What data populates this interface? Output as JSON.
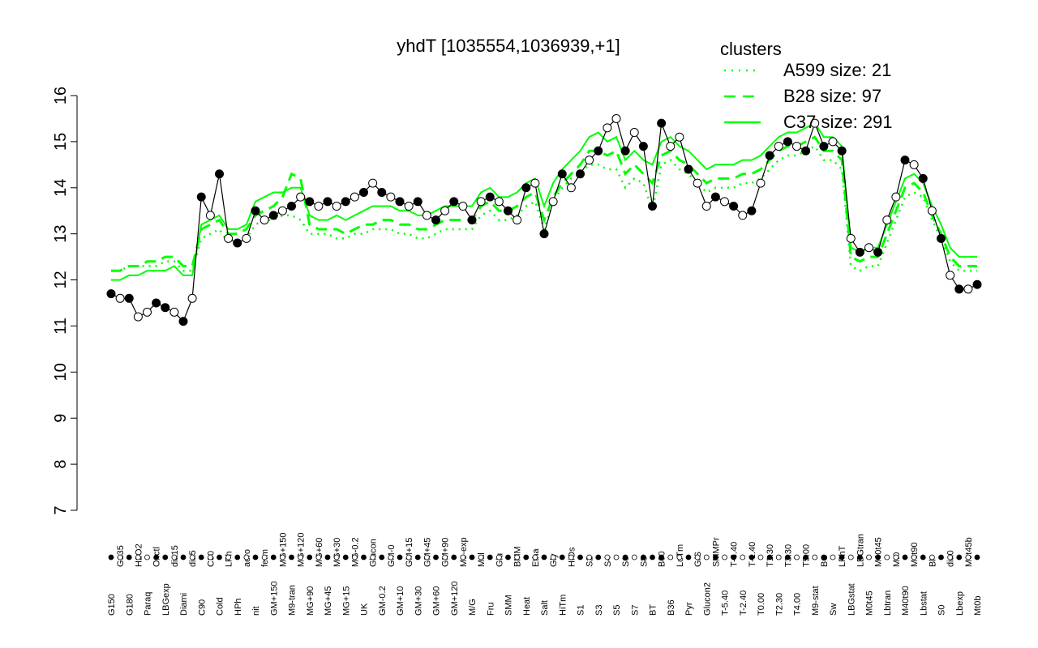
{
  "chart_data": {
    "type": "line",
    "title": "yhdT [1035554,1036939,+1]",
    "xlabel": "",
    "ylabel": "",
    "ylim": [
      7,
      16
    ],
    "yticks": [
      7,
      8,
      9,
      10,
      11,
      12,
      13,
      14,
      15,
      16
    ],
    "grid": false,
    "legend": {
      "title": "clusters",
      "placement": "top-right",
      "color": "#00ff00",
      "entries": [
        {
          "label": "A599 size: 21",
          "style": "dotted"
        },
        {
          "label": "B28 size: 97",
          "style": "dashed"
        },
        {
          "label": "C37 size: 291",
          "style": "solid"
        }
      ]
    },
    "line_color": "#00ff00",
    "x_labels": [
      "G150",
      "G135",
      "G180",
      "H2O2",
      "Paraq",
      "Oxctl",
      "LBGexp",
      "dia15",
      "Diami",
      "dia5",
      "C90",
      "C30",
      "Cold",
      "LPh",
      "HPh",
      "aero",
      "nit",
      "ferm",
      "GM+150",
      "MG+150",
      "M9-tran",
      "MG+120",
      "MG+90",
      "MG+60",
      "MG+45",
      "MG+30",
      "MG+15",
      "MG-0.2",
      "UK",
      "Glucon",
      "GM-0.2",
      "GM-0",
      "GM+10",
      "GM+15",
      "GM+30",
      "GM+45",
      "GM+60",
      "GM+90",
      "GM+120",
      "M9-exp",
      "M/G",
      "Mal",
      "Fru",
      "Glu",
      "SMM",
      "BMM",
      "Heat",
      "Etha",
      "Salt",
      "Gly",
      "HiTm",
      "HiOs",
      "S1",
      "S2",
      "S3",
      "S4",
      "S5",
      "S6",
      "S7",
      "S8",
      "BT",
      "B60",
      "B36",
      "LoTm",
      "Pyr",
      "G/S",
      "Glucon2",
      "SMMPr",
      "T-5.40",
      "T-3.40",
      "T-2.40",
      "T-1.40",
      "T0.00",
      "T1.30",
      "T2.30",
      "T3.30",
      "T4.00",
      "T5.00",
      "M9-stat",
      "BC",
      "Sw",
      "LPhT",
      "LBGstat",
      "LBGtran",
      "M0t45",
      "M40t45",
      "Lbtran",
      "Mt0",
      "M40t90",
      "M0t90",
      "Lbstat",
      "Bl",
      "S0",
      "dia0",
      "Lbexp",
      "M0t45b",
      "Mt0b"
    ],
    "series": [
      {
        "values": [
          11.7,
          11.6,
          11.6,
          11.2,
          11.3,
          11.5,
          11.4,
          11.3,
          11.1,
          11.6,
          13.8,
          13.4,
          14.3,
          12.9,
          12.8,
          12.9,
          13.5,
          13.3,
          13.4,
          13.5,
          13.6,
          13.8,
          13.7,
          13.6,
          13.7,
          13.6,
          13.7,
          13.8,
          13.9,
          14.1,
          13.9,
          13.8,
          13.7,
          13.6,
          13.7,
          13.4,
          13.3,
          13.5,
          13.7,
          13.6,
          13.3,
          13.7,
          13.8,
          13.7,
          13.5,
          13.3,
          14.0,
          14.1,
          13.0,
          13.7,
          14.3,
          14.0,
          14.3,
          14.6,
          14.8,
          15.3,
          15.5,
          14.8,
          15.2,
          14.9,
          13.6,
          15.4,
          14.9,
          15.1,
          14.4,
          14.1,
          13.6,
          13.8,
          13.7,
          13.6,
          13.4,
          13.5,
          14.1,
          14.7,
          14.9,
          15.0,
          14.9,
          14.8,
          15.4,
          14.9,
          15.0,
          14.8,
          12.9,
          12.6,
          12.7,
          12.6,
          13.3,
          13.8,
          14.6,
          14.5,
          14.2,
          13.5,
          12.9,
          12.1,
          11.8,
          11.8,
          11.9
        ]
      }
    ],
    "envelopes": {
      "B28_dashed": [
        12.2,
        12.2,
        12.3,
        12.3,
        12.4,
        12.4,
        12.5,
        12.5,
        12.3,
        12.3,
        13.1,
        13.2,
        13.3,
        13.0,
        13.0,
        13.1,
        13.4,
        13.5,
        13.6,
        13.8,
        14.3,
        14.2,
        13.2,
        13.1,
        13.1,
        13.1,
        13.0,
        13.1,
        13.2,
        13.2,
        13.3,
        13.3,
        13.2,
        13.2,
        13.1,
        13.1,
        13.2,
        13.3,
        13.3,
        13.3,
        13.3,
        13.6,
        13.7,
        13.5,
        13.5,
        13.6,
        13.8,
        13.9,
        13.3,
        13.8,
        14.1,
        14.3,
        14.5,
        14.8,
        14.8,
        14.7,
        14.8,
        14.3,
        14.5,
        14.3,
        14.1,
        14.7,
        14.8,
        14.6,
        14.5,
        14.3,
        14.1,
        14.2,
        14.2,
        14.2,
        14.3,
        14.3,
        14.4,
        14.6,
        14.8,
        14.9,
        14.9,
        15.0,
        15.1,
        14.8,
        14.8,
        14.6,
        12.5,
        12.4,
        12.5,
        12.5,
        13.0,
        13.5,
        14.0,
        14.1,
        13.9,
        13.4,
        13.0,
        12.5,
        12.3,
        12.3,
        12.3
      ],
      "A599_dotted": [
        12.2,
        12.2,
        12.3,
        12.3,
        12.3,
        12.3,
        12.4,
        12.4,
        12.2,
        12.2,
        12.9,
        13.0,
        13.1,
        12.8,
        12.8,
        12.9,
        13.2,
        13.3,
        13.3,
        13.4,
        13.4,
        13.3,
        13.0,
        13.0,
        13.0,
        12.9,
        12.9,
        13.0,
        13.0,
        13.1,
        13.1,
        13.1,
        13.0,
        13.0,
        12.9,
        12.9,
        13.0,
        13.1,
        13.1,
        13.1,
        13.1,
        13.4,
        13.5,
        13.3,
        13.3,
        13.4,
        13.6,
        13.7,
        13.1,
        13.7,
        14.0,
        14.2,
        14.3,
        14.5,
        14.5,
        14.4,
        14.4,
        14.0,
        14.2,
        14.1,
        13.5,
        14.5,
        14.6,
        14.4,
        14.3,
        14.1,
        13.9,
        14.0,
        14.0,
        14.0,
        14.1,
        14.1,
        14.2,
        14.4,
        14.6,
        14.7,
        14.7,
        14.8,
        14.9,
        14.6,
        14.6,
        14.4,
        12.3,
        12.2,
        12.3,
        12.3,
        12.8,
        13.3,
        13.8,
        13.9,
        13.8,
        13.3,
        12.9,
        12.4,
        12.2,
        12.2,
        12.2
      ],
      "C37_solid": [
        12.0,
        12.0,
        12.1,
        12.1,
        12.2,
        12.2,
        12.2,
        12.3,
        12.1,
        12.1,
        13.2,
        13.3,
        13.4,
        13.1,
        13.1,
        13.2,
        13.7,
        13.8,
        13.9,
        13.9,
        14.0,
        14.0,
        13.4,
        13.3,
        13.3,
        13.4,
        13.3,
        13.4,
        13.5,
        13.6,
        13.6,
        13.6,
        13.5,
        13.5,
        13.4,
        13.4,
        13.5,
        13.6,
        13.6,
        13.6,
        13.6,
        13.9,
        14.0,
        13.8,
        13.8,
        13.9,
        14.1,
        14.2,
        13.6,
        14.1,
        14.4,
        14.6,
        14.8,
        15.1,
        15.2,
        15.0,
        15.1,
        14.6,
        14.8,
        14.6,
        14.5,
        15.0,
        15.1,
        14.9,
        14.8,
        14.6,
        14.4,
        14.5,
        14.5,
        14.5,
        14.6,
        14.6,
        14.7,
        14.9,
        15.1,
        15.2,
        15.2,
        15.3,
        15.4,
        15.1,
        15.1,
        14.9,
        12.7,
        12.6,
        12.7,
        12.7,
        13.2,
        13.7,
        14.2,
        14.3,
        14.1,
        13.6,
        13.2,
        12.7,
        12.5,
        12.5,
        12.5
      ]
    },
    "point_fill": [
      "black",
      "white",
      "black",
      "white",
      "white",
      "black",
      "black",
      "white",
      "black",
      "white",
      "black",
      "white",
      "black",
      "white",
      "black",
      "white",
      "black",
      "white",
      "black",
      "white",
      "black",
      "white",
      "black",
      "white",
      "black",
      "white",
      "black",
      "white",
      "black",
      "white",
      "black",
      "white",
      "black",
      "white",
      "black",
      "white",
      "black",
      "white",
      "black",
      "white",
      "black",
      "white",
      "black",
      "white",
      "black",
      "white",
      "black",
      "white",
      "black",
      "white",
      "black",
      "white",
      "black",
      "white",
      "black",
      "white",
      "white",
      "black",
      "white",
      "black",
      "black",
      "black",
      "white",
      "white",
      "black",
      "white",
      "white",
      "black",
      "white",
      "black",
      "white",
      "black",
      "white",
      "black",
      "white",
      "black",
      "white",
      "black",
      "white",
      "black",
      "white",
      "black",
      "white",
      "black",
      "white",
      "black",
      "white",
      "white",
      "black",
      "white",
      "black",
      "white",
      "black",
      "white",
      "black",
      "white",
      "black"
    ]
  }
}
